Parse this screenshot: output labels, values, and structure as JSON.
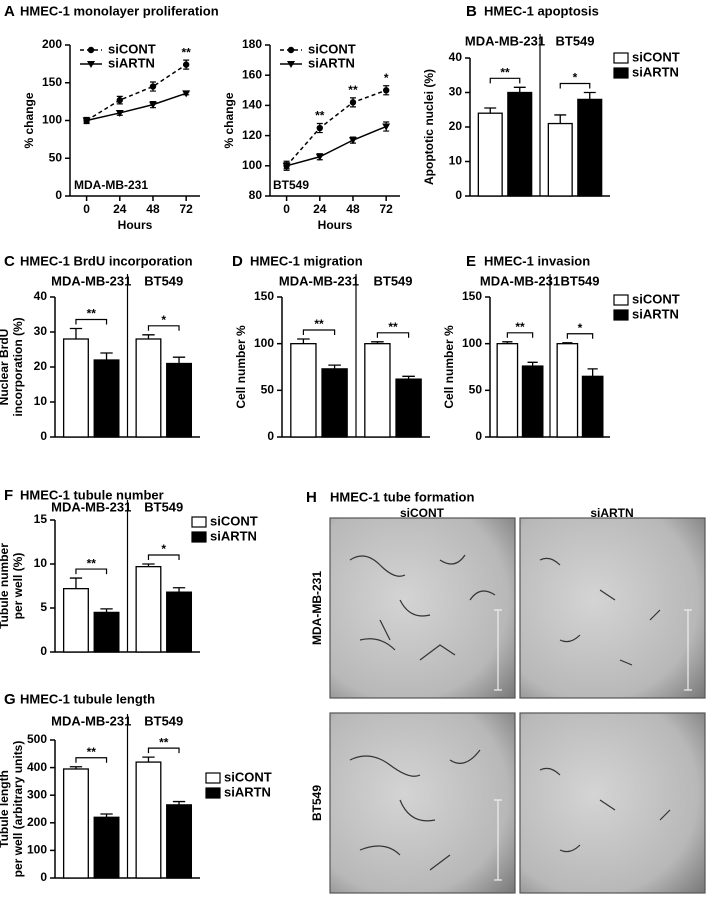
{
  "chart_data": [
    {
      "type": "line",
      "panel": "A",
      "title": "HMEC-1 monolayer proliferation",
      "inset_label": "MDA-MB-231",
      "x": [
        0,
        24,
        48,
        72
      ],
      "xlim": [
        -12,
        82
      ],
      "xticks": [
        0,
        24,
        48,
        72
      ],
      "xlabel": "Hours",
      "ylabel": [
        "% change"
      ],
      "ylim": [
        0,
        200
      ],
      "yticks": [
        0,
        50,
        100,
        150,
        200
      ],
      "legend": true,
      "series": [
        {
          "name": "siCONT",
          "color": "#000000",
          "style": "dashed",
          "marker": "circle",
          "values": [
            100,
            127,
            145,
            174
          ],
          "errors": [
            4,
            5,
            6,
            6
          ]
        },
        {
          "name": "siARTN",
          "color": "#000000",
          "style": "solid",
          "marker": "triangle-down",
          "values": [
            100,
            110,
            121,
            136
          ],
          "errors": [
            3,
            3,
            4,
            2
          ]
        }
      ],
      "significance": [
        null,
        null,
        null,
        "**"
      ]
    },
    {
      "type": "line",
      "inset_label": "BT549",
      "x": [
        0,
        24,
        48,
        72
      ],
      "xlim": [
        -12,
        82
      ],
      "xticks": [
        0,
        24,
        48,
        72
      ],
      "xlabel": "Hours",
      "ylabel": [
        "% change"
      ],
      "ylim": [
        80,
        180
      ],
      "yticks": [
        80,
        100,
        120,
        140,
        160,
        180
      ],
      "legend": true,
      "series": [
        {
          "name": "siCONT",
          "color": "#000000",
          "style": "dashed",
          "marker": "circle",
          "values": [
            100,
            125,
            142,
            150
          ],
          "errors": [
            3,
            3,
            3,
            3
          ]
        },
        {
          "name": "siARTN",
          "color": "#000000",
          "style": "solid",
          "marker": "triangle-down",
          "values": [
            100,
            106,
            117,
            126
          ],
          "errors": [
            2,
            2,
            2,
            3
          ]
        }
      ],
      "significance": [
        null,
        "**",
        "**",
        "*"
      ]
    },
    {
      "type": "bar",
      "panel": "B",
      "title": "HMEC-1 apoptosis",
      "categories": [
        "MDA-MB-231",
        "BT549"
      ],
      "ylabel": [
        "Apoptotic nuclei (%)"
      ],
      "ylim": [
        0,
        40
      ],
      "yticks": [
        0,
        10,
        20,
        30,
        40
      ],
      "legend": true,
      "series": [
        {
          "name": "siCONT",
          "color": "#ffffff",
          "values": [
            24,
            21
          ],
          "errors": [
            1.5,
            2.5
          ]
        },
        {
          "name": "siARTN",
          "color": "#000000",
          "values": [
            30,
            28
          ],
          "errors": [
            1.5,
            2
          ]
        }
      ],
      "significance": [
        "**",
        "*"
      ]
    },
    {
      "type": "bar",
      "panel": "C",
      "title": "HMEC-1 BrdU incorporation",
      "categories": [
        "MDA-MB-231",
        "BT549"
      ],
      "ylabel": [
        "Nuclear BrdU",
        "incorporation (%)"
      ],
      "ylim": [
        0,
        40
      ],
      "yticks": [
        0,
        10,
        20,
        30,
        40
      ],
      "legend": false,
      "series": [
        {
          "name": "siCONT",
          "color": "#ffffff",
          "values": [
            28,
            28
          ],
          "errors": [
            3,
            1.2
          ]
        },
        {
          "name": "siARTN",
          "color": "#000000",
          "values": [
            22,
            21
          ],
          "errors": [
            2,
            1.8
          ]
        }
      ],
      "significance": [
        "**",
        "*"
      ]
    },
    {
      "type": "bar",
      "panel": "D",
      "title": "HMEC-1 migration",
      "categories": [
        "MDA-MB-231",
        "BT549"
      ],
      "ylabel": [
        "Cell number %"
      ],
      "ylim": [
        0,
        150
      ],
      "yticks": [
        0,
        50,
        100,
        150
      ],
      "legend": false,
      "series": [
        {
          "name": "siCONT",
          "color": "#ffffff",
          "values": [
            100,
            100
          ],
          "errors": [
            5,
            2
          ]
        },
        {
          "name": "siARTN",
          "color": "#000000",
          "values": [
            73,
            62
          ],
          "errors": [
            4,
            3
          ]
        }
      ],
      "significance": [
        "**",
        "**"
      ]
    },
    {
      "type": "bar",
      "panel": "E",
      "title": "HMEC-1 invasion",
      "categories": [
        "MDA-MB-231",
        "BT549"
      ],
      "ylabel": [
        "Cell number %"
      ],
      "ylim": [
        0,
        150
      ],
      "yticks": [
        0,
        50,
        100,
        150
      ],
      "legend": true,
      "series": [
        {
          "name": "siCONT",
          "color": "#ffffff",
          "values": [
            100,
            100
          ],
          "errors": [
            2,
            1
          ]
        },
        {
          "name": "siARTN",
          "color": "#000000",
          "values": [
            76,
            65
          ],
          "errors": [
            4,
            8
          ]
        }
      ],
      "significance": [
        "**",
        "*"
      ]
    },
    {
      "type": "bar",
      "panel": "F",
      "title": "HMEC-1 tubule number",
      "categories": [
        "MDA-MB-231",
        "BT549"
      ],
      "ylabel": [
        "Tubule number",
        "per well (%)"
      ],
      "ylim": [
        0,
        15
      ],
      "yticks": [
        0,
        5,
        10,
        15
      ],
      "legend": true,
      "series": [
        {
          "name": "siCONT",
          "color": "#ffffff",
          "values": [
            7.2,
            9.7
          ],
          "errors": [
            1.2,
            0.3
          ]
        },
        {
          "name": "siARTN",
          "color": "#000000",
          "values": [
            4.5,
            6.8
          ],
          "errors": [
            0.4,
            0.5
          ]
        }
      ],
      "significance": [
        "**",
        "*"
      ]
    },
    {
      "type": "bar",
      "panel": "G",
      "title": "HMEC-1 tubule length",
      "categories": [
        "MDA-MB-231",
        "BT549"
      ],
      "ylabel": [
        "Tubule length",
        "per well (arbitrary units)"
      ],
      "ylim": [
        0,
        500
      ],
      "yticks": [
        0,
        100,
        200,
        300,
        400,
        500
      ],
      "legend": true,
      "series": [
        {
          "name": "siCONT",
          "color": "#ffffff",
          "values": [
            395,
            420
          ],
          "errors": [
            8,
            18
          ]
        },
        {
          "name": "siARTN",
          "color": "#000000",
          "values": [
            220,
            265
          ],
          "errors": [
            12,
            12
          ]
        }
      ],
      "significance": [
        "**",
        "**"
      ]
    }
  ],
  "figure_h": {
    "panel": "H",
    "title": "HMEC-1 tube formation",
    "columns": [
      "siCONT",
      "siARTN"
    ],
    "rows": [
      "MDA-MB-231",
      "BT549"
    ]
  }
}
